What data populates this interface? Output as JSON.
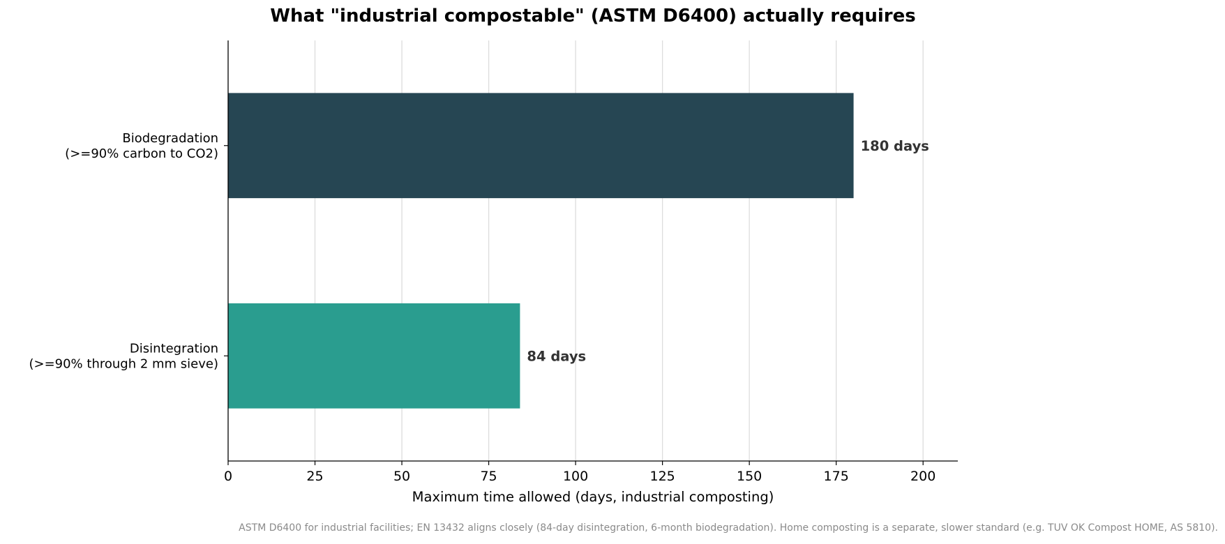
{
  "chart_data": {
    "type": "bar",
    "orientation": "horizontal",
    "title": "What \"industrial compostable\" (ASTM D6400) actually requires",
    "xlabel": "Maximum time allowed (days, industrial composting)",
    "ylabel": "",
    "categories": [
      [
        "Biodegradation",
        "(>=90% carbon to CO2)"
      ],
      [
        "Disintegration",
        "(>=90% through 2 mm sieve)"
      ]
    ],
    "values": [
      180,
      84
    ],
    "value_labels": [
      "180 days",
      "84 days"
    ],
    "colors": [
      "#264653",
      "#2a9d8f"
    ],
    "xlim": [
      0,
      210
    ],
    "xticks": [
      0,
      25,
      50,
      75,
      100,
      125,
      150,
      175,
      200
    ],
    "grid": "vertical",
    "footnote": "ASTM D6400 for industrial facilities; EN 13432 aligns closely (84-day disintegration, 6-month biodegradation). Home composting is a separate, slower standard (e.g. TUV OK Compost HOME, AS 5810)."
  }
}
